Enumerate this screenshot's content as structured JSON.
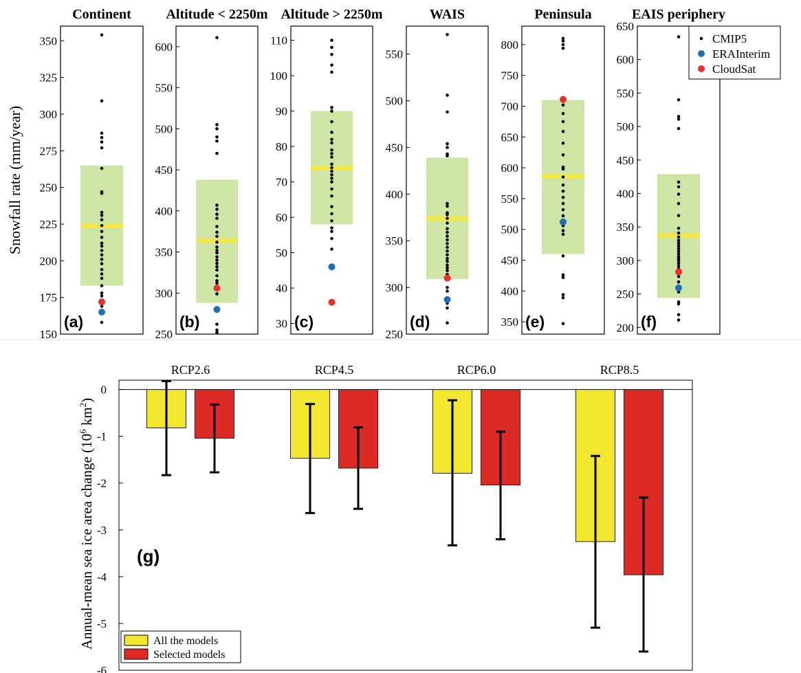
{
  "colors": {
    "cmip5": "#000000",
    "erainterim": "#1f6fb4",
    "cloudsat": "#e8302f",
    "spread_band": "#cfe5a6",
    "mean_line": "#f5e940",
    "all_models_bar": "#f2e62e",
    "selected_models_bar": "#de2a26"
  },
  "chart_data": [
    {
      "type": "scatter",
      "ylabel": "Snowfall rate (mm/year)",
      "legend": {
        "position": "top-right",
        "entries": [
          "CMIP5",
          "ERAInterim",
          "CloudSat"
        ]
      },
      "panels": [
        {
          "title": "Continent",
          "tag": "(a)",
          "ylim": [
            150,
            360
          ],
          "yticks": [
            150,
            175,
            200,
            225,
            250,
            275,
            300,
            325,
            350
          ],
          "band": [
            183,
            265
          ],
          "mean": 224,
          "cmip5": [
            354,
            309,
            287,
            284,
            281,
            277,
            263,
            247,
            246,
            233,
            231,
            228,
            224,
            220,
            216,
            212,
            210,
            207,
            204,
            201,
            198,
            194,
            191,
            188,
            183,
            178,
            176,
            173,
            169,
            164,
            158
          ],
          "erainterim": 165,
          "cloudsat": 172
        },
        {
          "title": "Altitude < 2250m",
          "tag": "(b)",
          "ylim": [
            250,
            625
          ],
          "yticks": [
            250,
            300,
            350,
            400,
            450,
            500,
            550,
            600
          ],
          "band": [
            288,
            438
          ],
          "mean": 364,
          "cmip5": [
            611,
            505,
            500,
            490,
            485,
            470,
            407,
            402,
            396,
            391,
            381,
            374,
            369,
            362,
            356,
            352,
            349,
            344,
            340,
            336,
            332,
            328,
            321,
            315,
            312,
            304,
            299,
            262,
            255,
            252
          ],
          "erainterim": 280,
          "cloudsat": 306
        },
        {
          "title": "Altitude > 2250m",
          "tag": "(c)",
          "ylim": [
            27,
            114
          ],
          "yticks": [
            30,
            40,
            50,
            60,
            70,
            80,
            90,
            100,
            110
          ],
          "band": [
            58,
            90
          ],
          "mean": 74,
          "cmip5": [
            110,
            108,
            106,
            103,
            101,
            91,
            90,
            87,
            84,
            82,
            81,
            79,
            78,
            77,
            75,
            74,
            73,
            72,
            71,
            70,
            68,
            66,
            63,
            61,
            59,
            57,
            56,
            54,
            51
          ],
          "erainterim": 46,
          "cloudsat": 36
        },
        {
          "title": "WAIS",
          "tag": "(d)",
          "ylim": [
            250,
            580
          ],
          "yticks": [
            250,
            300,
            350,
            400,
            450,
            500,
            550
          ],
          "band": [
            309,
            439
          ],
          "mean": 374,
          "cmip5": [
            571,
            506,
            488,
            454,
            450,
            443,
            441,
            390,
            387,
            380,
            378,
            374,
            369,
            363,
            359,
            355,
            351,
            347,
            343,
            339,
            335,
            331,
            328,
            324,
            321,
            318,
            314,
            300,
            296,
            283,
            278,
            262
          ],
          "erainterim": 287,
          "cloudsat": 310
        },
        {
          "title": "Peninsula",
          "tag": "(e)",
          "ylim": [
            330,
            830
          ],
          "yticks": [
            350,
            400,
            450,
            500,
            550,
            600,
            650,
            700,
            750,
            800
          ],
          "band": [
            460,
            710
          ],
          "mean": 586,
          "cmip5": [
            810,
            806,
            800,
            794,
            714,
            708,
            702,
            688,
            675,
            659,
            640,
            621,
            601,
            598,
            585,
            572,
            562,
            552,
            542,
            532,
            522,
            512,
            506,
            498,
            492,
            457,
            426,
            422,
            394,
            389,
            347
          ],
          "erainterim": 512,
          "cloudsat": 711
        },
        {
          "title": "EAIS periphery",
          "tag": "(f)",
          "ylim": [
            190,
            650
          ],
          "yticks": [
            200,
            250,
            300,
            350,
            400,
            450,
            500,
            550,
            600,
            650
          ],
          "band": [
            244,
            429
          ],
          "mean": 337,
          "cmip5": [
            634,
            540,
            515,
            511,
            497,
            417,
            410,
            399,
            385,
            367,
            348,
            341,
            335,
            330,
            326,
            322,
            318,
            314,
            310,
            306,
            303,
            300,
            296,
            292,
            288,
            276,
            268,
            262,
            253,
            238,
            235,
            219,
            211
          ],
          "erainterim": 259,
          "cloudsat": 283
        }
      ]
    },
    {
      "type": "bar",
      "tag": "(g)",
      "categories": [
        "RCP2.6",
        "RCP4.5",
        "RCP6.0",
        "RCP8.5"
      ],
      "ylabel_text": "Annual-mean sea ice area change (10",
      "ylabel_sup": "6",
      "ylabel_tail": " km",
      "ylabel_sup2": "2",
      "ylabel_close": ")",
      "ylim": [
        -6,
        0.2
      ],
      "yticks": [
        0,
        -1,
        -2,
        -3,
        -4,
        -5,
        -6
      ],
      "ytick_labels": [
        "0",
        "-1",
        "-2",
        "-3",
        "-4",
        "-5",
        "-6"
      ],
      "legend": {
        "position": "bottom-left"
      },
      "series": [
        {
          "name": "All the models",
          "values": [
            -0.82,
            -1.47,
            -1.79,
            -3.25
          ],
          "err_high": [
            0.18,
            -0.31,
            -0.23,
            -1.42
          ],
          "err_low": [
            -1.83,
            -2.64,
            -3.33,
            -5.09
          ]
        },
        {
          "name": "Selected models",
          "values": [
            -1.04,
            -1.68,
            -2.04,
            -3.96
          ],
          "err_high": [
            -0.32,
            -0.81,
            -0.9,
            -2.31
          ],
          "err_low": [
            -1.77,
            -2.55,
            -3.2,
            -5.6
          ]
        }
      ]
    }
  ]
}
